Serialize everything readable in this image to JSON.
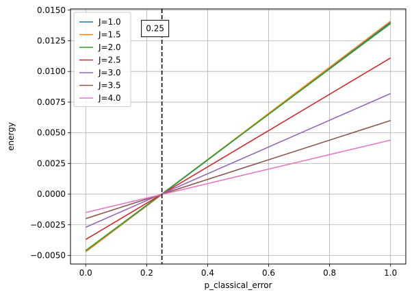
{
  "chart_data": {
    "type": "line",
    "xlabel": "p_classical_error",
    "ylabel": "energy",
    "xlim": [
      -0.05,
      1.05
    ],
    "ylim": [
      -0.0057,
      0.0151
    ],
    "x_ticks": [
      0.0,
      0.2,
      0.4,
      0.6,
      0.8,
      1.0
    ],
    "x_tick_labels": [
      "0.0",
      "0.2",
      "0.4",
      "0.6",
      "0.8",
      "1.0"
    ],
    "y_ticks": [
      -0.005,
      -0.0025,
      0.0,
      0.0025,
      0.005,
      0.0075,
      0.01,
      0.0125,
      0.015
    ],
    "y_tick_labels": [
      "−0.0050",
      "−0.0025",
      "0.0000",
      "0.0025",
      "0.0050",
      "0.0075",
      "0.0100",
      "0.0125",
      "0.0150"
    ],
    "grid": true,
    "legend_position": "top-left",
    "vline": {
      "x": 0.25,
      "style": "dashed",
      "color": "#000000"
    },
    "annotation": {
      "text": "0.25",
      "x": 0.25,
      "y": 0.0135
    },
    "series": [
      {
        "name": "J=1.0",
        "color": "#1f77b4",
        "x": [
          0.0,
          1.0
        ],
        "y": [
          -0.0047,
          0.014
        ]
      },
      {
        "name": "J=1.5",
        "color": "#ff7f0e",
        "x": [
          0.0,
          1.0
        ],
        "y": [
          -0.0047,
          0.0141
        ]
      },
      {
        "name": "J=2.0",
        "color": "#2ca02c",
        "x": [
          0.0,
          1.0
        ],
        "y": [
          -0.0046,
          0.0139
        ]
      },
      {
        "name": "J=2.5",
        "color": "#d62728",
        "x": [
          0.0,
          1.0
        ],
        "y": [
          -0.0037,
          0.0111
        ]
      },
      {
        "name": "J=3.0",
        "color": "#9467bd",
        "x": [
          0.0,
          1.0
        ],
        "y": [
          -0.0027,
          0.0082
        ]
      },
      {
        "name": "J=3.5",
        "color": "#8c564b",
        "x": [
          0.0,
          1.0
        ],
        "y": [
          -0.002,
          0.006
        ]
      },
      {
        "name": "J=4.0",
        "color": "#e377c2",
        "x": [
          0.0,
          1.0
        ],
        "y": [
          -0.0015,
          0.0044
        ]
      }
    ]
  }
}
